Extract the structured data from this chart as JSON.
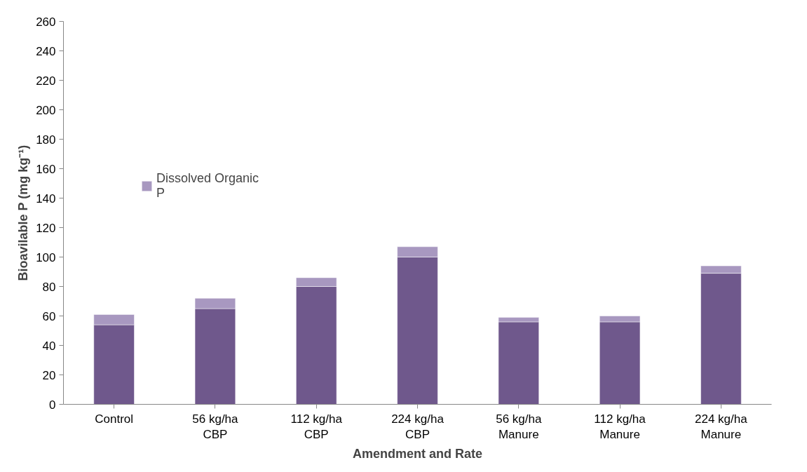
{
  "chart_data": {
    "type": "bar",
    "stacked": true,
    "xlabel": "Amendment and Rate",
    "ylabel": "Bioavilable P (mg kg⁻¹)",
    "categories": [
      "Control",
      "56 kg/ha CBP",
      "112 kg/ha CBP",
      "224 kg/ha CBP",
      "56 kg/ha Manure",
      "112 kg/ha Manure",
      "224 kg/ha Manure"
    ],
    "series": [
      {
        "color": "#6f588c",
        "values": [
          54,
          65,
          80,
          100,
          56,
          56,
          89
        ]
      },
      {
        "name": "Dissolved Organic P",
        "color": "#a898c0",
        "values": [
          7,
          7,
          6,
          7,
          3,
          4,
          5
        ]
      }
    ],
    "ylim": [
      0,
      260
    ],
    "yticks": [
      0,
      20,
      40,
      60,
      80,
      100,
      120,
      140,
      160,
      180,
      200,
      220,
      240,
      260
    ],
    "grid": false,
    "legend": "left"
  }
}
